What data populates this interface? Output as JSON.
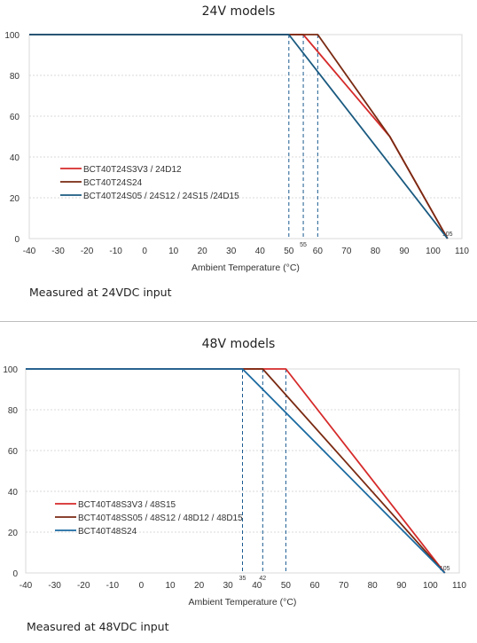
{
  "chart_data": [
    {
      "type": "line",
      "title": "24V models",
      "xlabel": "Ambient Temperature (°C)",
      "ylabel": "",
      "xlim": [
        -40,
        110
      ],
      "ylim": [
        0,
        100
      ],
      "x_ticks": [
        -40,
        -30,
        -20,
        -10,
        0,
        10,
        20,
        30,
        40,
        50,
        60,
        70,
        80,
        90,
        100,
        110
      ],
      "y_ticks": [
        0,
        20,
        40,
        60,
        80,
        100
      ],
      "grid": "horizontal",
      "legend": "lower-left",
      "series": [
        {
          "name": "BCT40T24S3V3 / 24D12",
          "color": "#d62a2a",
          "points": [
            [
              -40,
              100
            ],
            [
              55,
              100
            ],
            [
              85,
              50
            ],
            [
              105,
              0
            ]
          ]
        },
        {
          "name": "BCT40T24S24",
          "color": "#7a2a12",
          "points": [
            [
              -40,
              100
            ],
            [
              60,
              100
            ],
            [
              85,
              50
            ],
            [
              105,
              0
            ]
          ]
        },
        {
          "name": "BCT40T24S05 / 24S12 / 24S15 /24D15",
          "color": "#1a5a80",
          "points": [
            [
              -40,
              100
            ],
            [
              50,
              100
            ],
            [
              105,
              0
            ]
          ]
        }
      ],
      "markers": [
        {
          "x": 50,
          "label": ""
        },
        {
          "x": 55,
          "label": "55"
        },
        {
          "x": 60,
          "label": ""
        },
        {
          "x": 105,
          "label": "105"
        }
      ],
      "note": "Measured at 24VDC input"
    },
    {
      "type": "line",
      "title": "48V models",
      "xlabel": "Ambient Temperature (°C)",
      "ylabel": "",
      "xlim": [
        -40,
        110
      ],
      "ylim": [
        0,
        100
      ],
      "x_ticks": [
        -40,
        -30,
        -20,
        -10,
        0,
        10,
        20,
        30,
        40,
        50,
        60,
        70,
        80,
        90,
        100,
        110
      ],
      "y_ticks": [
        0,
        20,
        40,
        60,
        80,
        100
      ],
      "grid": "horizontal",
      "legend": "lower-left",
      "series": [
        {
          "name": "BCT40T48S3V3 / 48S15",
          "color": "#d62a2a",
          "points": [
            [
              -40,
              100
            ],
            [
              50,
              100
            ],
            [
              105,
              0
            ]
          ]
        },
        {
          "name": "BCT40T48SS05 / 48S12 / 48D12 / 48D15",
          "color": "#7a2a12",
          "points": [
            [
              -40,
              100
            ],
            [
              42,
              100
            ],
            [
              105,
              0
            ]
          ]
        },
        {
          "name": "BCT40T48S24",
          "color": "#1a6aa0",
          "points": [
            [
              -40,
              100
            ],
            [
              35,
              100
            ],
            [
              105,
              0
            ]
          ]
        }
      ],
      "markers": [
        {
          "x": 35,
          "label": "35"
        },
        {
          "x": 42,
          "label": "42"
        },
        {
          "x": 50,
          "label": ""
        },
        {
          "x": 105,
          "label": "105"
        }
      ],
      "note": "Measured at 48VDC input"
    }
  ]
}
